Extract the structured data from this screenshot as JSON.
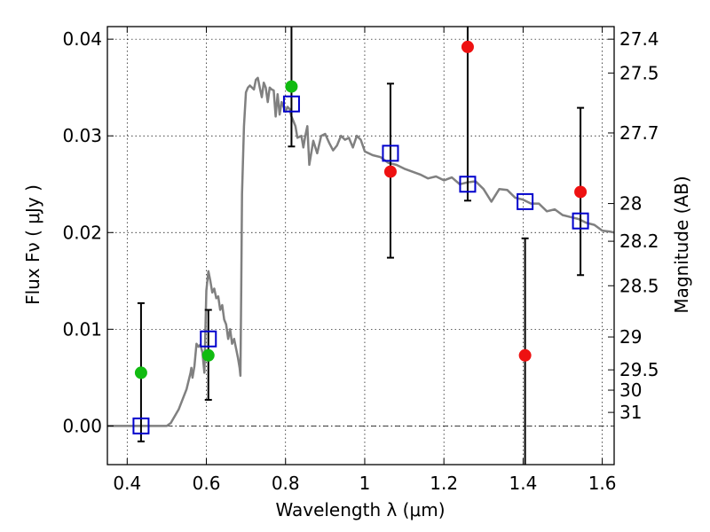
{
  "chart_data": {
    "type": "scatter",
    "xlabel": "Wavelength  λ (μm)",
    "ylabel": "Flux  Fν  ( μJy )",
    "y2label": "Magnitude (AB)",
    "xlim": [
      0.35,
      1.63
    ],
    "ylim": [
      -0.004,
      0.0413
    ],
    "grid": true,
    "x_ticks": [
      0.4,
      0.6,
      0.8,
      1.0,
      1.2,
      1.4,
      1.6
    ],
    "x_tick_labels": [
      "0.4",
      "0.6",
      "0.8",
      "1",
      "1.2",
      "1.4",
      "1.6"
    ],
    "y_ticks": [
      0.0,
      0.01,
      0.02,
      0.03,
      0.04
    ],
    "y_tick_labels": [
      "0.00",
      "0.01",
      "0.02",
      "0.03",
      "0.04"
    ],
    "mag_ticks": [
      {
        "label": "27.4",
        "flux": 0.04
      },
      {
        "label": "27.5",
        "flux": 0.0365
      },
      {
        "label": "27.7",
        "flux": 0.0303
      },
      {
        "label": "28",
        "flux": 0.023
      },
      {
        "label": "28.2",
        "flux": 0.0191
      },
      {
        "label": "28.5",
        "flux": 0.0145
      },
      {
        "label": "29",
        "flux": 0.0092
      },
      {
        "label": "29.5",
        "flux": 0.0058
      },
      {
        "label": "30",
        "flux": 0.0037
      },
      {
        "label": "31",
        "flux": 0.0014
      }
    ],
    "colors": {
      "model": "#808080",
      "green": "#11bb11",
      "red": "#ee1111",
      "box": "#0000cc",
      "errorbar": "#000000"
    },
    "series": [
      {
        "name": "model spectrum",
        "kind": "line",
        "x": [
          0.35,
          0.5,
          0.51,
          0.53,
          0.55,
          0.56,
          0.562,
          0.565,
          0.57,
          0.575,
          0.58,
          0.585,
          0.59,
          0.595,
          0.6,
          0.605,
          0.61,
          0.615,
          0.62,
          0.625,
          0.63,
          0.635,
          0.64,
          0.645,
          0.65,
          0.655,
          0.66,
          0.665,
          0.67,
          0.675,
          0.68,
          0.684,
          0.686,
          0.688,
          0.69,
          0.695,
          0.7,
          0.705,
          0.71,
          0.72,
          0.725,
          0.73,
          0.735,
          0.74,
          0.745,
          0.75,
          0.755,
          0.76,
          0.765,
          0.77,
          0.775,
          0.78,
          0.785,
          0.79,
          0.795,
          0.8,
          0.805,
          0.81,
          0.815,
          0.82,
          0.825,
          0.83,
          0.84,
          0.845,
          0.85,
          0.855,
          0.86,
          0.87,
          0.88,
          0.89,
          0.9,
          0.91,
          0.92,
          0.93,
          0.94,
          0.95,
          0.96,
          0.97,
          0.98,
          0.99,
          1.0,
          1.02,
          1.04,
          1.06,
          1.08,
          1.1,
          1.12,
          1.14,
          1.16,
          1.18,
          1.2,
          1.22,
          1.24,
          1.26,
          1.28,
          1.3,
          1.32,
          1.34,
          1.36,
          1.38,
          1.4,
          1.42,
          1.44,
          1.46,
          1.48,
          1.5,
          1.52,
          1.54,
          1.56,
          1.58,
          1.6,
          1.62,
          1.63
        ],
        "y": [
          0.0,
          0.0,
          0.0003,
          0.0017,
          0.0038,
          0.0055,
          0.006,
          0.005,
          0.0062,
          0.0085,
          0.0082,
          0.0084,
          0.0076,
          0.0055,
          0.014,
          0.016,
          0.015,
          0.0138,
          0.0142,
          0.0132,
          0.0134,
          0.012,
          0.0125,
          0.011,
          0.0105,
          0.009,
          0.01,
          0.0085,
          0.009,
          0.008,
          0.007,
          0.006,
          0.0052,
          0.014,
          0.024,
          0.031,
          0.0345,
          0.035,
          0.0352,
          0.0348,
          0.0358,
          0.036,
          0.035,
          0.034,
          0.0355,
          0.035,
          0.0335,
          0.035,
          0.0348,
          0.0347,
          0.032,
          0.0343,
          0.0322,
          0.0335,
          0.033,
          0.0325,
          0.033,
          0.0328,
          0.032,
          0.0315,
          0.031,
          0.0298,
          0.03,
          0.0288,
          0.03,
          0.031,
          0.027,
          0.0295,
          0.0282,
          0.03,
          0.0302,
          0.0293,
          0.0285,
          0.029,
          0.03,
          0.0296,
          0.0298,
          0.0288,
          0.03,
          0.0296,
          0.0284,
          0.028,
          0.0278,
          0.0272,
          0.027,
          0.0266,
          0.0263,
          0.026,
          0.0256,
          0.0258,
          0.0254,
          0.0257,
          0.025,
          0.0252,
          0.0253,
          0.0245,
          0.0232,
          0.0245,
          0.0244,
          0.0236,
          0.0234,
          0.023,
          0.023,
          0.0222,
          0.0224,
          0.0218,
          0.0216,
          0.0214,
          0.021,
          0.0208,
          0.0202,
          0.0201,
          0.02
        ]
      },
      {
        "name": "green points",
        "kind": "point",
        "x": [
          0.435,
          0.605,
          0.815
        ],
        "y": [
          0.0055,
          0.0073,
          0.0351
        ]
      },
      {
        "name": "red points",
        "kind": "point",
        "x": [
          1.065,
          1.26,
          1.405,
          1.545
        ],
        "y": [
          0.0263,
          0.0392,
          0.0073,
          0.0242
        ]
      },
      {
        "name": "model photometry boxes",
        "kind": "box",
        "x": [
          0.435,
          0.605,
          0.815,
          1.065,
          1.26,
          1.405,
          1.545
        ],
        "y": [
          0.0,
          0.009,
          0.0333,
          0.0282,
          0.025,
          0.0232,
          0.0212
        ]
      },
      {
        "name": "error bars",
        "kind": "errorbar",
        "x": [
          0.435,
          0.605,
          0.815,
          1.065,
          1.26,
          1.405,
          1.545
        ],
        "low": [
          -0.0016,
          0.0027,
          0.0289,
          0.0174,
          0.0233,
          -0.004,
          0.0156
        ],
        "high": [
          0.0127,
          0.012,
          0.0413,
          0.0354,
          0.0413,
          0.0194,
          0.0329
        ]
      }
    ]
  }
}
